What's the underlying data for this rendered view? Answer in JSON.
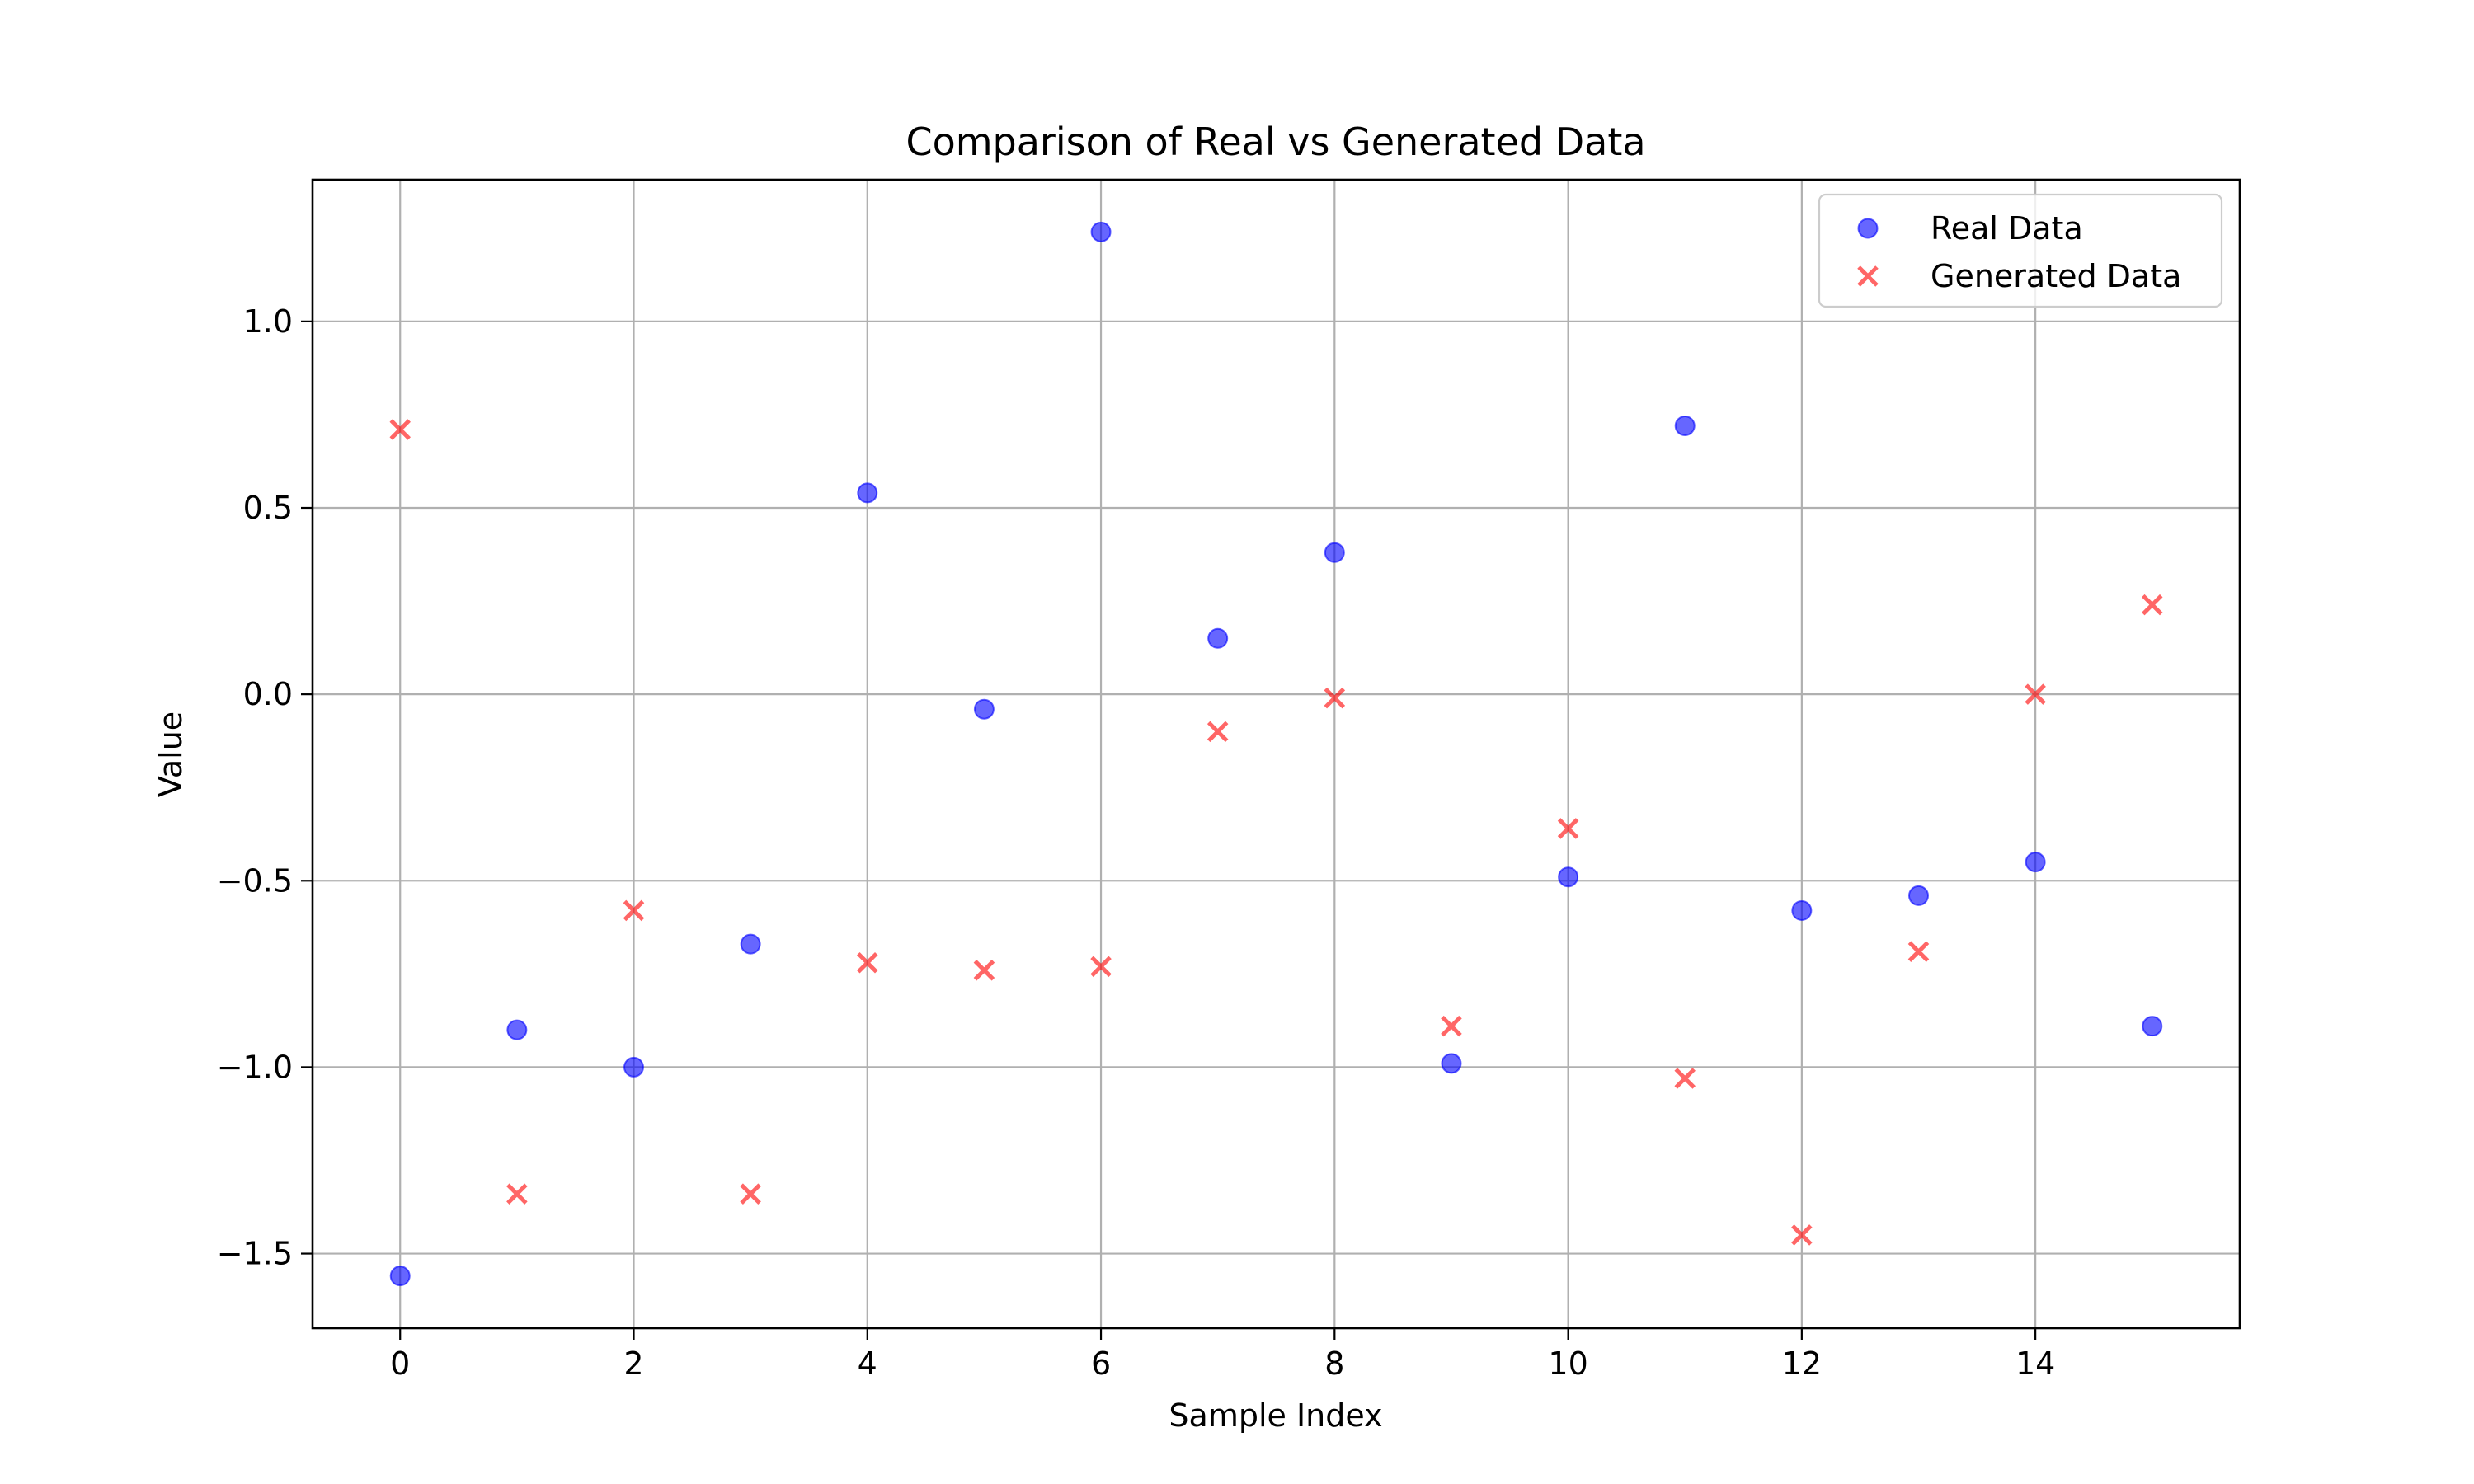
{
  "chart_data": {
    "type": "scatter",
    "title": "Comparison of Real vs Generated Data",
    "xlabel": "Sample Index",
    "ylabel": "Value",
    "xlim": [
      -0.75,
      15.75
    ],
    "ylim": [
      -1.7,
      1.38
    ],
    "xticks": [
      0,
      2,
      4,
      6,
      8,
      10,
      12,
      14
    ],
    "xtick_labels": [
      "0",
      "2",
      "4",
      "6",
      "8",
      "10",
      "12",
      "14"
    ],
    "yticks": [
      -1.5,
      -1.0,
      -0.5,
      0.0,
      0.5,
      1.0
    ],
    "ytick_labels": [
      "−1.5",
      "−1.0",
      "−0.5",
      "0.0",
      "0.5",
      "1.0"
    ],
    "grid": true,
    "legend_position": "top-right",
    "x": [
      0,
      1,
      2,
      3,
      4,
      5,
      6,
      7,
      8,
      9,
      10,
      11,
      12,
      13,
      14,
      15
    ],
    "series": [
      {
        "name": "Real Data",
        "marker": "circle",
        "color": "#0000ff",
        "values": [
          -1.56,
          -0.9,
          -1.0,
          -0.67,
          0.54,
          -0.04,
          1.24,
          0.15,
          0.38,
          -0.99,
          -0.49,
          0.72,
          -0.58,
          -0.54,
          -0.45,
          -0.89
        ]
      },
      {
        "name": "Generated Data",
        "marker": "x",
        "color": "#ff0000",
        "values": [
          0.71,
          -1.34,
          -0.58,
          -1.34,
          -0.72,
          -0.74,
          -0.73,
          -0.1,
          -0.01,
          -0.89,
          -0.36,
          -1.03,
          -1.45,
          -0.69,
          0.0,
          0.24
        ]
      }
    ]
  }
}
